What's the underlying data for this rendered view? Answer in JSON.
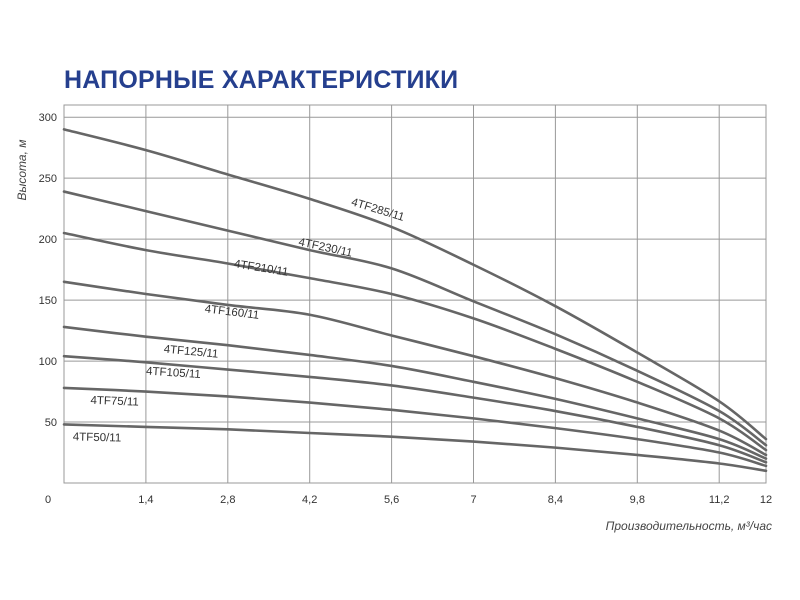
{
  "chart_data": {
    "type": "line",
    "title": "НАПОРНЫЕ ХАРАКТЕРИСТИКИ",
    "xlabel": "Производительность, м³/час",
    "ylabel": "Высота, м",
    "xlim": [
      0,
      12
    ],
    "ylim": [
      0,
      310
    ],
    "x_ticks": [
      "0",
      "1,4",
      "2,8",
      "4,2",
      "5,6",
      "7",
      "8,4",
      "9,8",
      "11,2",
      "12"
    ],
    "x_tick_values": [
      0,
      1.4,
      2.8,
      4.2,
      5.6,
      7,
      8.4,
      9.8,
      11.2,
      12
    ],
    "y_ticks": [
      "50",
      "100",
      "150",
      "200",
      "250",
      "300"
    ],
    "y_tick_values": [
      50,
      100,
      150,
      200,
      250,
      300
    ],
    "grid": true,
    "colors": {
      "line": "#666666",
      "grid": "#999999",
      "title": "#253f8e"
    },
    "x": [
      0,
      1.4,
      2.8,
      4.2,
      5.6,
      7,
      8.4,
      9.8,
      11.2,
      12
    ],
    "series": [
      {
        "name": "4TF285/11",
        "values": [
          290,
          273,
          253,
          233,
          210,
          179,
          145,
          107,
          67,
          36
        ]
      },
      {
        "name": "4TF230/11",
        "values": [
          239,
          223,
          207,
          191,
          176,
          149,
          122,
          92,
          59,
          31
        ]
      },
      {
        "name": "4TF210/11",
        "values": [
          205,
          191,
          180,
          168,
          155,
          135,
          110,
          83,
          53,
          27
        ]
      },
      {
        "name": "4TF160/11",
        "values": [
          165,
          155,
          146,
          138,
          121,
          104,
          86,
          66,
          43,
          23
        ]
      },
      {
        "name": "4TF125/11",
        "values": [
          128,
          120,
          113,
          105,
          96,
          83,
          69,
          53,
          36,
          20
        ]
      },
      {
        "name": "4TF105/11",
        "values": [
          104,
          99,
          93,
          87,
          80,
          70,
          59,
          46,
          31,
          17
        ]
      },
      {
        "name": "4TF75/11",
        "values": [
          78,
          75,
          71,
          66,
          60,
          53,
          45,
          36,
          25,
          14
        ]
      },
      {
        "name": "4TF50/11",
        "values": [
          48,
          46,
          44,
          41,
          38,
          34,
          29,
          23,
          16,
          10
        ]
      }
    ],
    "label_anchors": [
      {
        "x": 4.9,
        "y": 228
      },
      {
        "x": 4.0,
        "y": 195
      },
      {
        "x": 2.9,
        "y": 177
      },
      {
        "x": 2.4,
        "y": 140
      },
      {
        "x": 1.7,
        "y": 107
      },
      {
        "x": 1.4,
        "y": 89
      },
      {
        "x": 0.45,
        "y": 65
      },
      {
        "x": 0.15,
        "y": 35
      }
    ]
  }
}
